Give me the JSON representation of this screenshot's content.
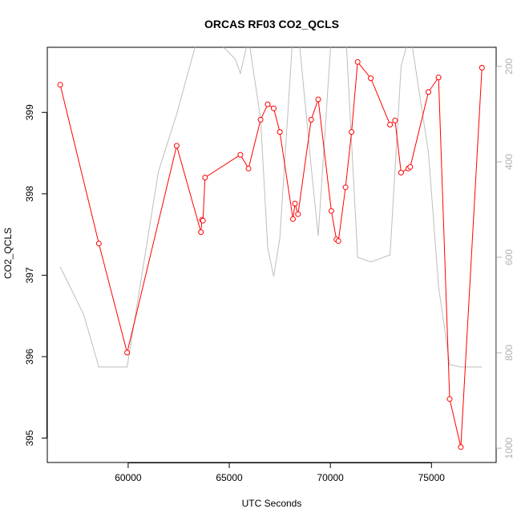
{
  "chart_data": {
    "type": "line",
    "title": "ORCAS RF03 CO2_QCLS",
    "xlabel": "UTC Seconds",
    "ylabel": "CO2_QCLS",
    "xlim": [
      56000,
      78200
    ],
    "ylim": [
      394.7,
      399.8
    ],
    "y2lim": [
      1030,
      160
    ],
    "y2_reversed": true,
    "grid": false,
    "legend": "none",
    "x_ticks": [
      60000,
      65000,
      70000,
      75000
    ],
    "y_ticks": [
      395,
      396,
      397,
      398,
      399
    ],
    "y2_ticks": [
      200,
      400,
      600,
      800,
      1000
    ],
    "series": [
      {
        "role": "primary",
        "color": "#ff0000",
        "marker": "open-circle",
        "x": [
          56640,
          58550,
          59950,
          62400,
          63600,
          63650,
          63700,
          63800,
          65550,
          65950,
          66550,
          66900,
          67200,
          67500,
          68150,
          68250,
          68400,
          69050,
          69400,
          70050,
          70300,
          70400,
          70750,
          71050,
          71350,
          72000,
          72950,
          73200,
          73500,
          73850,
          73950,
          74850,
          75350,
          75900,
          76450,
          77500
        ],
        "y": [
          399.34,
          397.39,
          396.05,
          398.59,
          397.53,
          397.68,
          397.67,
          398.2,
          398.48,
          398.31,
          398.91,
          399.1,
          399.05,
          398.76,
          397.69,
          397.88,
          397.75,
          398.91,
          399.16,
          397.79,
          397.44,
          397.42,
          398.08,
          398.76,
          399.62,
          399.42,
          398.85,
          398.9,
          398.26,
          398.31,
          398.33,
          399.25,
          399.43,
          395.48,
          394.89,
          399.55
        ]
      },
      {
        "role": "secondary",
        "color": "#bebebe",
        "x": [
          56640,
          57800,
          58550,
          59950,
          61500,
          62400,
          63500,
          64500,
          65300,
          65550,
          65950,
          66550,
          66900,
          67200,
          67500,
          68150,
          68400,
          69050,
          69400,
          70050,
          70300,
          70750,
          71350,
          72000,
          72950,
          73500,
          73950,
          74850,
          75350,
          75900,
          76450,
          77500
        ],
        "y": [
          620,
          720,
          830,
          830,
          420,
          300,
          130,
          150,
          185,
          215,
          140,
          310,
          580,
          640,
          560,
          130,
          120,
          410,
          555,
          135,
          125,
          120,
          600,
          610,
          595,
          200,
          130,
          380,
          660,
          825,
          830,
          830
        ]
      }
    ]
  }
}
